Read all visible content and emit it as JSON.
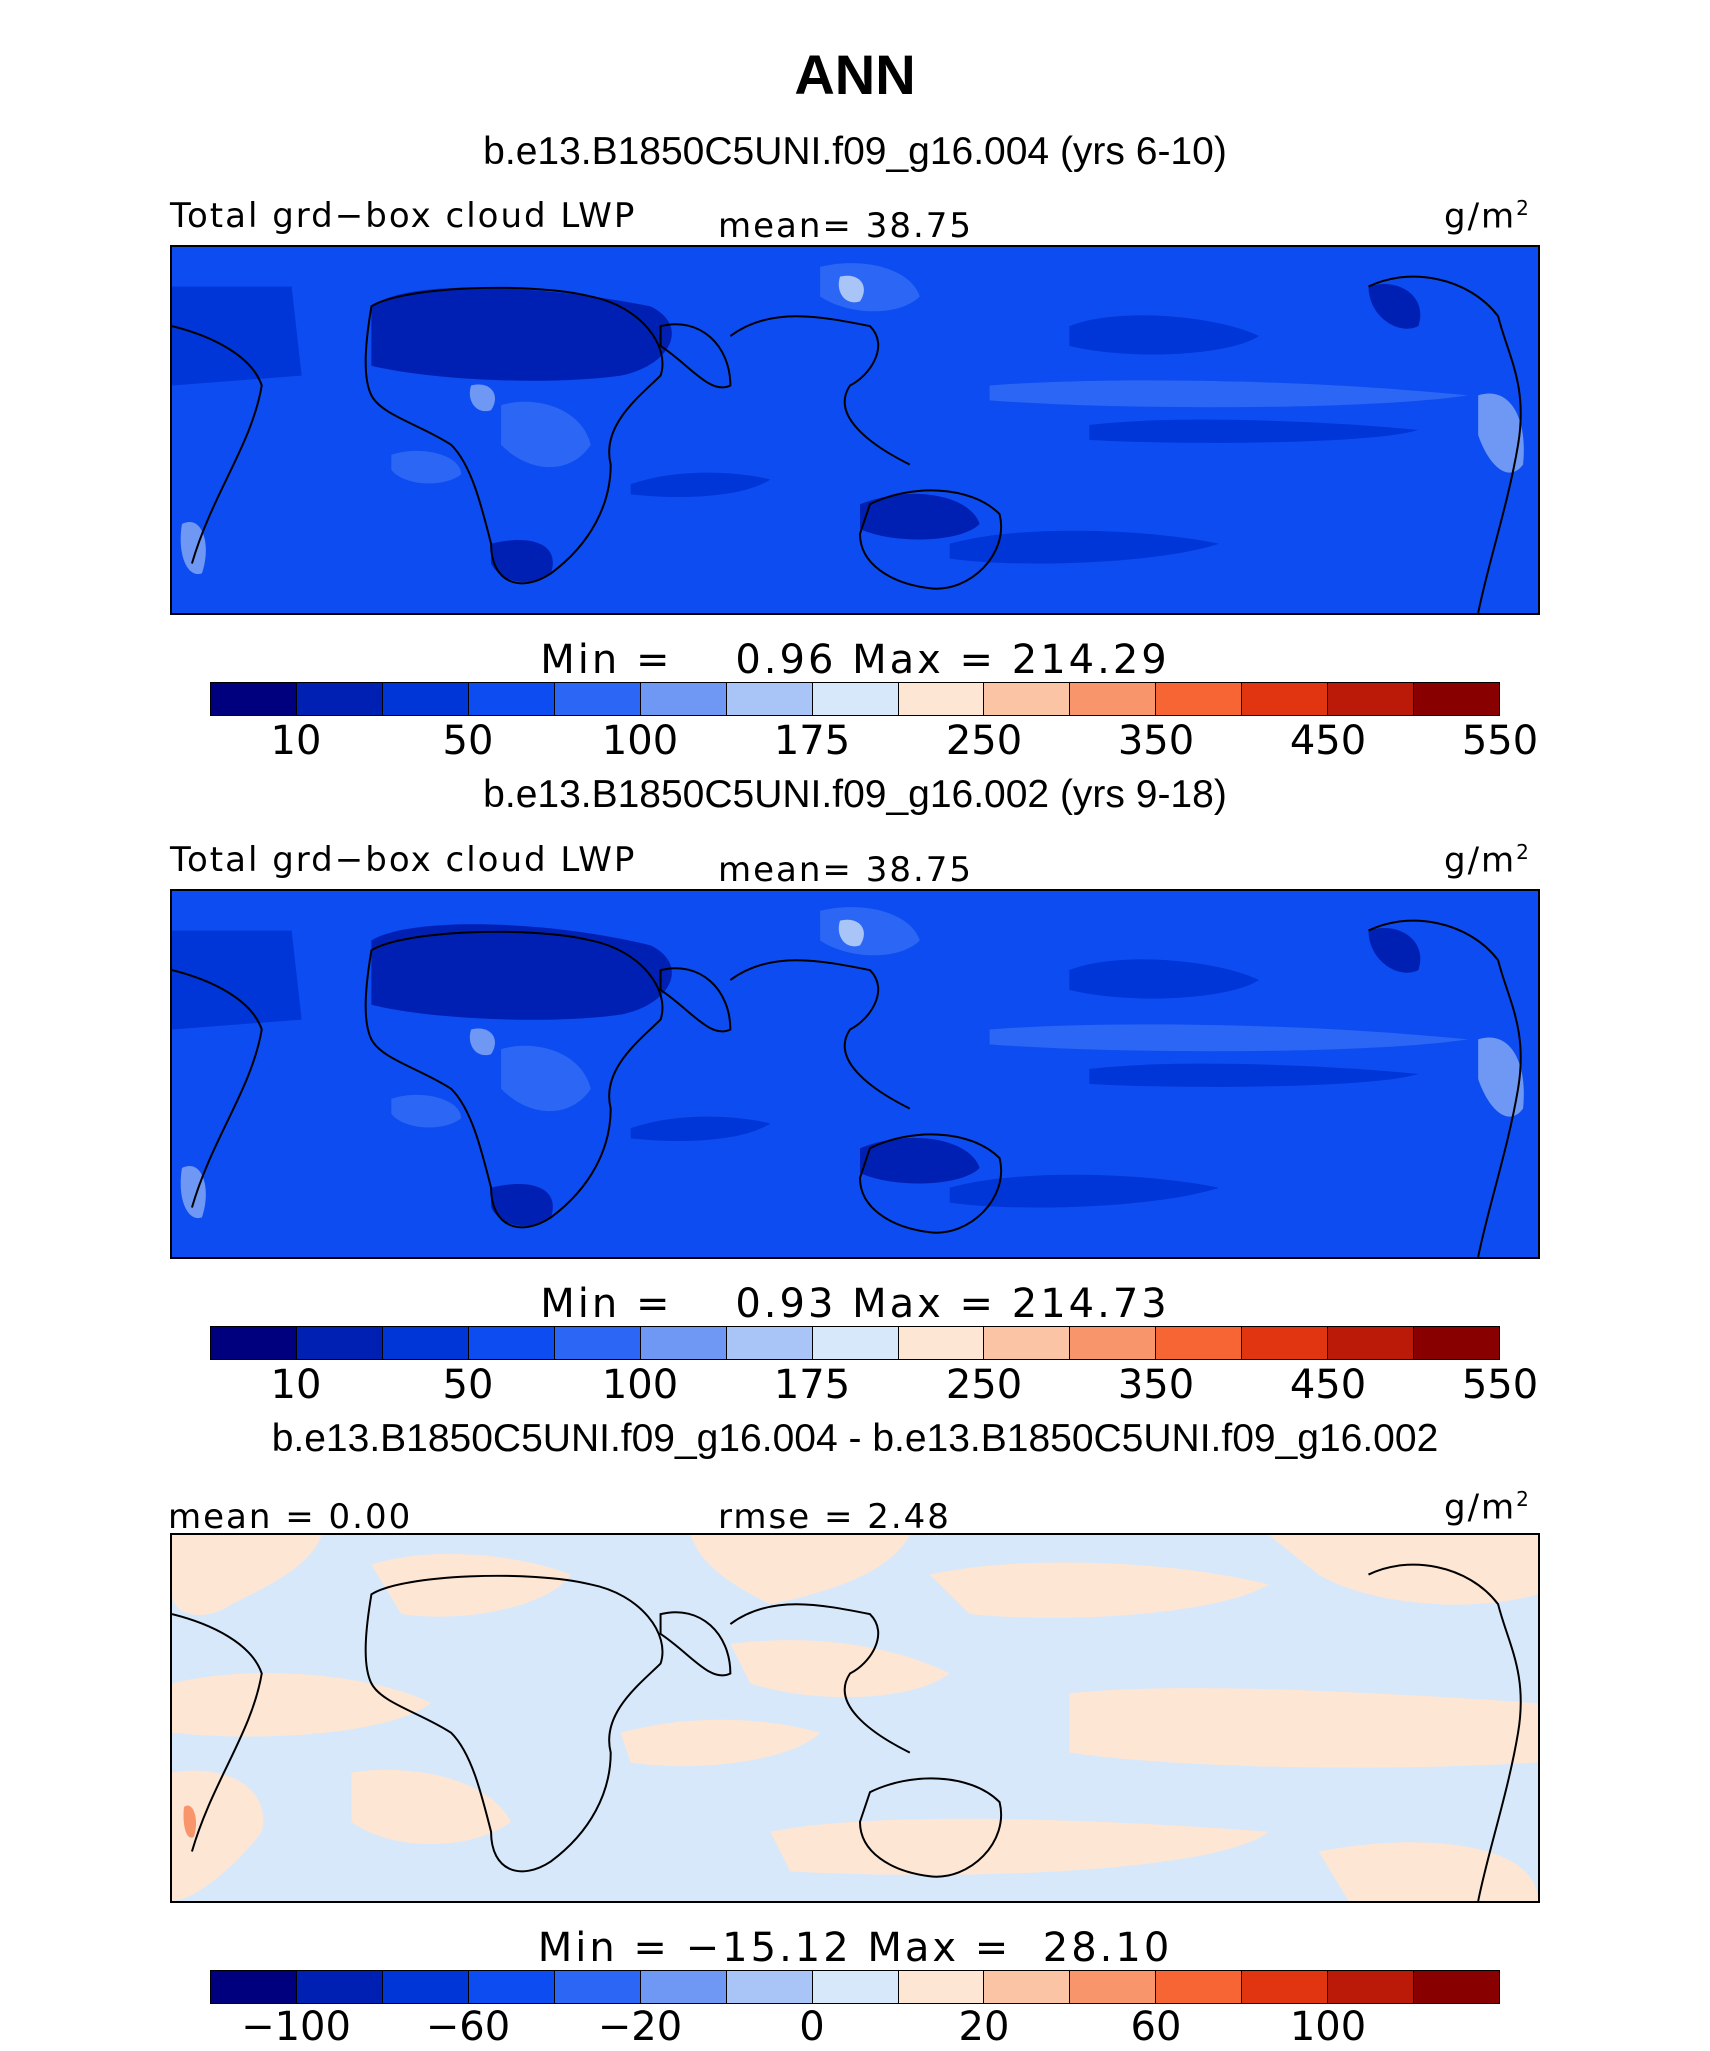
{
  "season_title": "ANN",
  "panels": [
    {
      "case_title": "b.e13.B1850C5UNI.f09_g16.004 (yrs 6-10)",
      "left_label": "Total grd−box cloud LWP",
      "center_label": "mean=  38.75",
      "units": "g/m",
      "units_sup": "2",
      "minmax": "Min =    0.96 Max = 214.29",
      "variant": "model"
    },
    {
      "case_title": "b.e13.B1850C5UNI.f09_g16.002 (yrs 9-18)",
      "left_label": "Total grd−box cloud LWP",
      "center_label": "mean=  38.75",
      "units": "g/m",
      "units_sup": "2",
      "minmax": "Min =    0.93 Max = 214.73",
      "variant": "model"
    },
    {
      "case_title": "b.e13.B1850C5UNI.f09_g16.004 - b.e13.B1850C5UNI.f09_g16.002",
      "left_label": "mean =   0.00",
      "center_label": "rmse =   2.48",
      "units": "g/m",
      "units_sup": "2",
      "minmax": "Min = −15.12 Max =  28.10",
      "variant": "diff"
    }
  ],
  "colorbar_colors": [
    "#00007f",
    "#0020b4",
    "#0035d8",
    "#0d4cf0",
    "#2c66f5",
    "#6f98f5",
    "#a9c4f7",
    "#d7e8fb",
    "#fde6d4",
    "#fbc4a4",
    "#f8956a",
    "#f76535",
    "#e13410",
    "#bc1a08",
    "#880000"
  ],
  "colorbar_model_ticks": [
    "10",
    "50",
    "100",
    "175",
    "250",
    "350",
    "450",
    "550"
  ],
  "colorbar_diff_ticks": [
    "−100",
    "−60",
    "−20",
    "0",
    "20",
    "60",
    "100"
  ]
}
